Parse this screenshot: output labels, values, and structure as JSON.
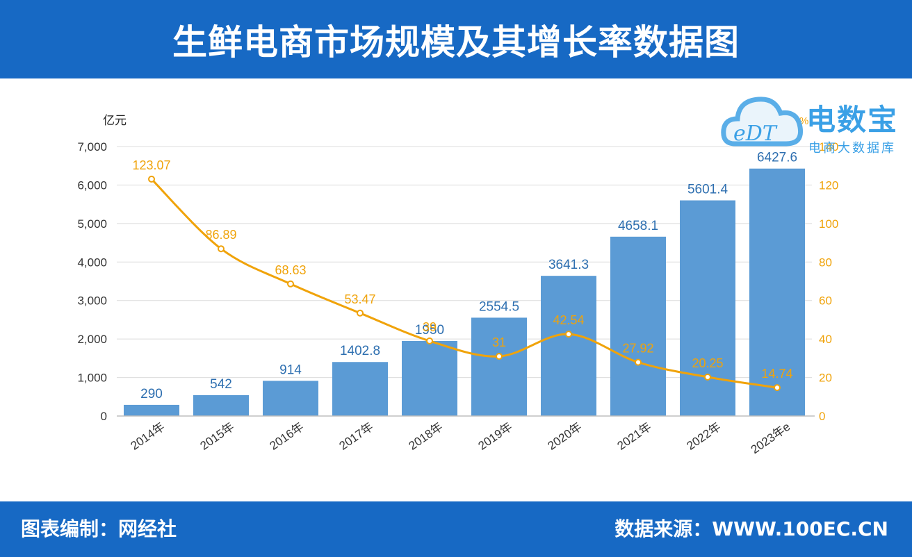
{
  "header": {
    "title": "生鲜电商市场规模及其增长率数据图"
  },
  "footer": {
    "left": "图表编制：网经社",
    "right": "数据来源：WWW.100EC.CN"
  },
  "watermark": {
    "logo_mark": "eDT",
    "name": "电数宝",
    "subtitle": "电商大数据库"
  },
  "colors": {
    "bar": "#5b9bd5",
    "line": "#f0a30a",
    "header": "#1769c4",
    "left_axis_text": "#333333",
    "right_axis_text": "#f0a30a"
  },
  "chart_data": {
    "type": "bar",
    "categories": [
      "2014年",
      "2015年",
      "2016年",
      "2017年",
      "2018年",
      "2019年",
      "2020年",
      "2021年",
      "2022年",
      "2023年e"
    ],
    "series": [
      {
        "type": "bar",
        "axis": "left",
        "values": [
          290,
          542,
          914,
          1402.8,
          1950,
          2554.5,
          3641.3,
          4658.1,
          5601.4,
          6427.6
        ],
        "labels": [
          "290",
          "542",
          "914",
          "1402.8",
          "1950",
          "2554.5",
          "3641.3",
          "4658.1",
          "5601.4",
          "6427.6"
        ]
      },
      {
        "type": "line",
        "axis": "right",
        "values": [
          123.07,
          86.89,
          68.63,
          53.47,
          39,
          31,
          42.54,
          27.92,
          20.25,
          14.74
        ],
        "labels": [
          "123.07",
          "86.89",
          "68.63",
          "53.47",
          "39",
          "31",
          "42.54",
          "27.92",
          "20.25",
          "14.74"
        ]
      }
    ],
    "ylabel": "亿元",
    "ylim": [
      0,
      7000
    ],
    "yticks": [
      "0",
      "1,000",
      "2,000",
      "3,000",
      "4,000",
      "5,000",
      "6,000",
      "7,000"
    ],
    "y2label": "%",
    "y2lim": [
      0,
      140
    ],
    "y2ticks": [
      "0",
      "20",
      "40",
      "60",
      "80",
      "100",
      "120",
      "140"
    ],
    "grid": true
  }
}
